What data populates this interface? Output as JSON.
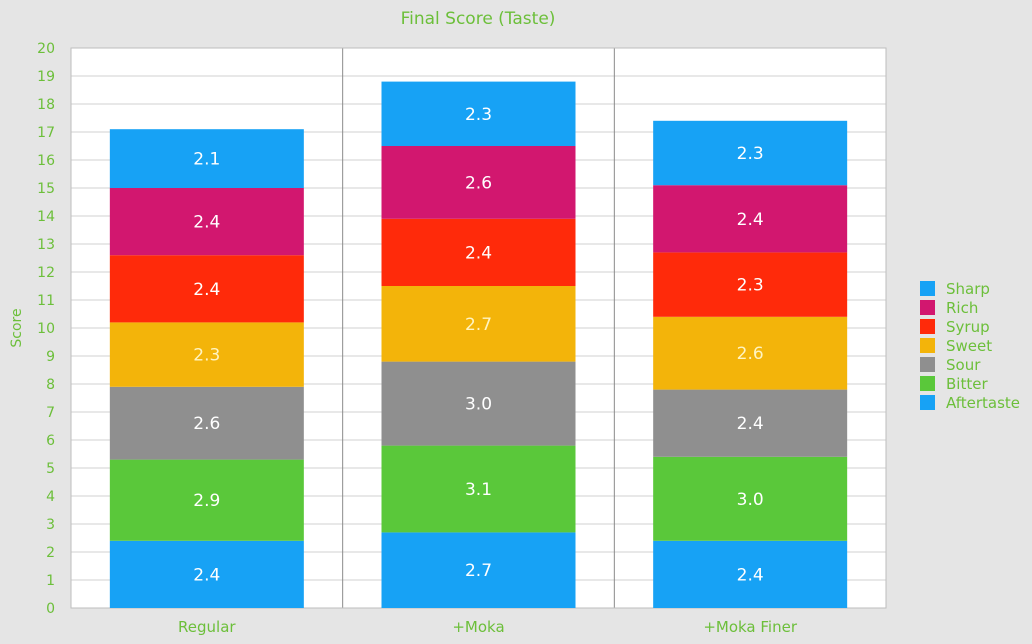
{
  "chart_data": {
    "type": "bar",
    "stacked": true,
    "title": "Final Score (Taste)",
    "xlabel": "",
    "ylabel": "Score",
    "ylim": [
      0,
      20
    ],
    "yticks": [
      0,
      1,
      2,
      3,
      4,
      5,
      6,
      7,
      8,
      9,
      10,
      11,
      12,
      13,
      14,
      15,
      16,
      17,
      18,
      19,
      20
    ],
    "grid": true,
    "legend_position": "right",
    "categories": [
      "Regular",
      "+Moka",
      "+Moka Finer"
    ],
    "series": [
      {
        "name": "Aftertaste",
        "color": "#17a2f5",
        "values": [
          2.4,
          2.7,
          2.4
        ]
      },
      {
        "name": "Bitter",
        "color": "#5ac83a",
        "values": [
          2.9,
          3.1,
          3.0
        ]
      },
      {
        "name": "Sour",
        "color": "#8f8f8f",
        "values": [
          2.6,
          3.0,
          2.4
        ]
      },
      {
        "name": "Sweet",
        "color": "#f3b40a",
        "values": [
          2.3,
          2.7,
          2.6
        ]
      },
      {
        "name": "Syrup",
        "color": "#ff2a0a",
        "values": [
          2.4,
          2.4,
          2.3
        ]
      },
      {
        "name": "Rich",
        "color": "#d2176f",
        "values": [
          2.4,
          2.6,
          2.4
        ]
      },
      {
        "name": "Sharp",
        "color": "#17a2f5",
        "values": [
          2.1,
          2.3,
          2.3
        ]
      }
    ],
    "legend_order": [
      "Sharp",
      "Rich",
      "Syrup",
      "Sweet",
      "Sour",
      "Bitter",
      "Aftertaste"
    ],
    "label_colors": {
      "default": "#ffffff",
      "Sweet": "#fff4c2"
    }
  }
}
